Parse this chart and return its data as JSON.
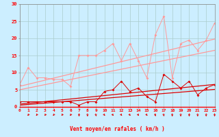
{
  "xlabel": "Vent moyen/en rafales ( km/h )",
  "bg_color": "#cceeff",
  "grid_color": "#aacccc",
  "line_color_light": "#ff9999",
  "line_color_dark": "#dd0000",
  "x": [
    0,
    1,
    2,
    3,
    4,
    5,
    6,
    7,
    8,
    9,
    10,
    11,
    12,
    13,
    14,
    15,
    16,
    17,
    18,
    19,
    20,
    21,
    22,
    23
  ],
  "line1": [
    6.5,
    11.5,
    8.5,
    8.5,
    8.0,
    8.0,
    6.0,
    15.0,
    15.0,
    15.0,
    16.5,
    18.5,
    13.5,
    18.5,
    13.5,
    8.5,
    21.0,
    26.5,
    8.5,
    18.5,
    19.5,
    16.5,
    19.5,
    24.5
  ],
  "trend1": [
    6.0,
    6.6,
    7.2,
    7.8,
    8.4,
    9.0,
    9.6,
    10.2,
    10.8,
    11.4,
    12.0,
    12.6,
    13.2,
    13.8,
    14.4,
    15.0,
    15.6,
    16.2,
    16.8,
    17.4,
    18.0,
    18.6,
    19.2,
    19.8
  ],
  "trend2": [
    5.0,
    5.5,
    6.0,
    6.5,
    7.0,
    7.5,
    8.0,
    8.5,
    9.0,
    9.5,
    10.0,
    10.5,
    11.0,
    11.5,
    12.0,
    12.5,
    13.0,
    13.5,
    14.0,
    14.5,
    15.0,
    15.5,
    16.0,
    16.5
  ],
  "line3": [
    1.5,
    1.5,
    1.5,
    1.5,
    1.5,
    1.5,
    1.5,
    0.5,
    1.5,
    1.5,
    4.5,
    5.0,
    7.5,
    4.5,
    5.5,
    3.0,
    1.5,
    9.5,
    7.5,
    5.5,
    7.5,
    3.5,
    5.5,
    6.5
  ],
  "trend3": [
    0.8,
    1.05,
    1.3,
    1.55,
    1.8,
    2.05,
    2.3,
    2.55,
    2.8,
    3.05,
    3.3,
    3.55,
    3.8,
    4.05,
    4.3,
    4.55,
    4.8,
    5.05,
    5.3,
    5.55,
    5.8,
    6.05,
    6.3,
    6.55
  ],
  "trend4": [
    0.5,
    0.7,
    0.9,
    1.1,
    1.3,
    1.5,
    1.7,
    1.9,
    2.1,
    2.3,
    2.5,
    2.7,
    2.9,
    3.1,
    3.3,
    3.5,
    3.7,
    3.9,
    4.1,
    4.3,
    4.5,
    4.7,
    4.9,
    5.1
  ],
  "yticks": [
    0,
    5,
    10,
    15,
    20,
    25,
    30
  ],
  "xticks": [
    0,
    1,
    2,
    3,
    4,
    5,
    6,
    7,
    8,
    9,
    10,
    11,
    12,
    13,
    14,
    15,
    16,
    17,
    18,
    19,
    20,
    21,
    22,
    23
  ],
  "ylim": [
    0,
    30
  ],
  "xlim": [
    0,
    23
  ],
  "arrow_angles": [
    225,
    225,
    225,
    225,
    225,
    225,
    225,
    270,
    270,
    292,
    315,
    315,
    315,
    315,
    315,
    315,
    292,
    292,
    270,
    270,
    270,
    270,
    270,
    270
  ]
}
